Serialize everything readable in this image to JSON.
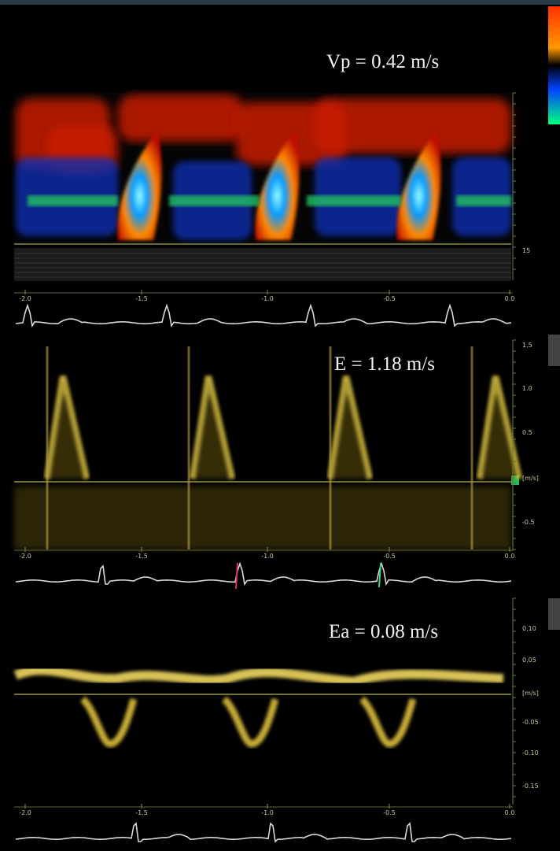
{
  "panels": [
    {
      "label": "Vp = 0.42 m/s",
      "time_ticks": [
        "-2.0",
        "-1.5",
        "-1.0",
        "-0.5",
        "0.0"
      ],
      "scale_ticks": [
        "15"
      ]
    },
    {
      "label": "E = 1.18 m/s",
      "time_ticks": [
        "-2.0",
        "-1.5",
        "-1.0",
        "-0.5",
        "0.0"
      ],
      "scale_ticks": [
        "1.5",
        "1.0",
        "0.5",
        "[m/s]",
        "-0.5"
      ]
    },
    {
      "label": "Ea = 0.08 m/s",
      "time_ticks": [
        "-2.0",
        "-1.5",
        "-1.0",
        "-0.5",
        "0.0"
      ],
      "scale_ticks": [
        "0.10",
        "0.05",
        "[m/s]",
        "-0.05",
        "-0.10",
        "-0.15"
      ]
    }
  ]
}
